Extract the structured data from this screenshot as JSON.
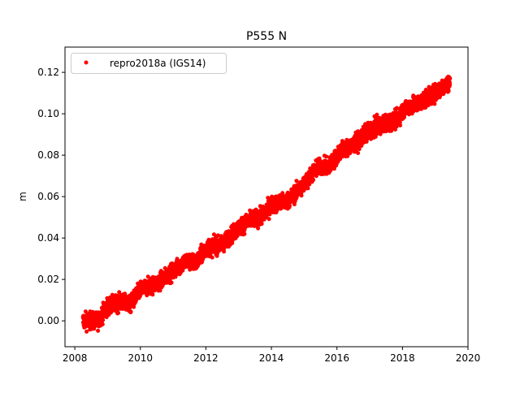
{
  "chart_data": {
    "type": "scatter",
    "title": "P555 N",
    "xlabel": "",
    "ylabel": "m",
    "xlim": [
      2007.7,
      2020.0
    ],
    "ylim": [
      -0.0125,
      0.1322
    ],
    "xticks": [
      2008,
      2010,
      2012,
      2014,
      2016,
      2018,
      2020
    ],
    "xtick_labels": [
      "2008",
      "2010",
      "2012",
      "2014",
      "2016",
      "2018",
      "2020"
    ],
    "yticks": [
      0.0,
      0.02,
      0.04,
      0.06,
      0.08,
      0.1,
      0.12
    ],
    "ytick_labels": [
      "0.00",
      "0.02",
      "0.04",
      "0.06",
      "0.08",
      "0.10",
      "0.12"
    ],
    "grid": false,
    "legend": {
      "placement": "upper-left",
      "entries": [
        "repro2018a (IGS14)"
      ]
    },
    "series": [
      {
        "name": "repro2018a (IGS14)",
        "color": "#ff0000",
        "marker": "dot",
        "x": [
          2008.3,
          2008.7,
          2009.0,
          2009.4,
          2009.7,
          2010.0,
          2010.5,
          2011.0,
          2011.4,
          2011.7,
          2012.0,
          2012.5,
          2013.0,
          2013.4,
          2013.7,
          2014.0,
          2014.5,
          2015.0,
          2015.4,
          2015.8,
          2016.1,
          2016.5,
          2017.0,
          2017.4,
          2017.8,
          2018.1,
          2018.5,
          2019.0,
          2019.4
        ],
        "y": [
          0.0,
          0.0,
          0.007,
          0.009,
          0.008,
          0.015,
          0.018,
          0.024,
          0.029,
          0.028,
          0.035,
          0.037,
          0.045,
          0.049,
          0.05,
          0.056,
          0.058,
          0.066,
          0.074,
          0.075,
          0.082,
          0.085,
          0.092,
          0.095,
          0.097,
          0.103,
          0.105,
          0.11,
          0.115
        ],
        "scatter_about_trend_m": 0.002
      }
    ]
  }
}
